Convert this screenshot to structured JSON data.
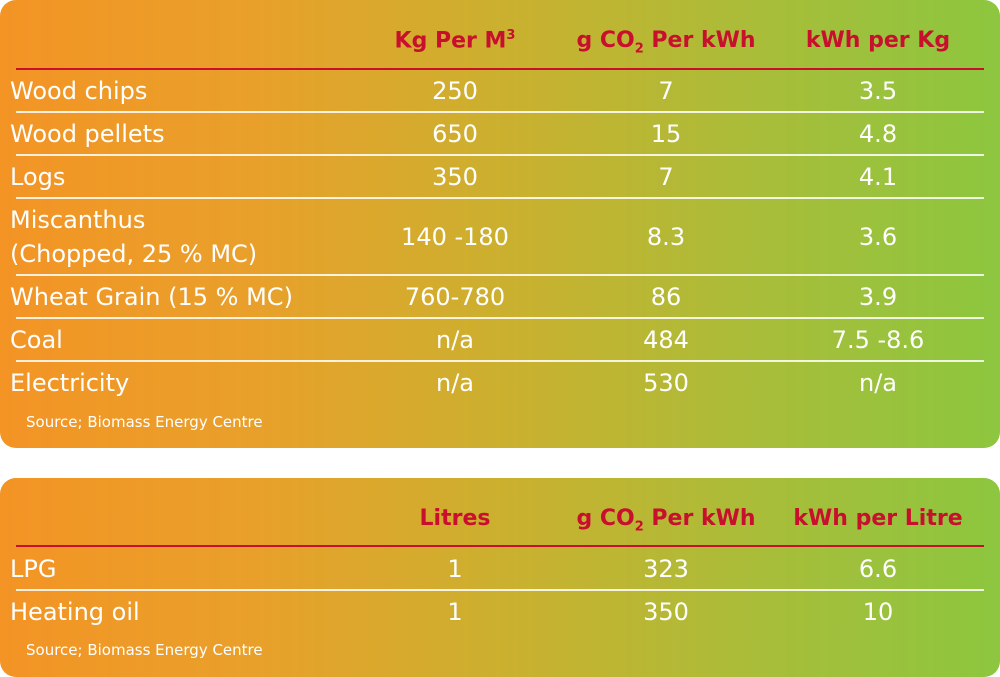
{
  "table1": {
    "headers": {
      "col1_base": "Kg Per M",
      "col1_sup": "3",
      "col2_pre": "g CO",
      "col2_sub": "2",
      "col2_post": " Per kWh",
      "col3": "kWh per Kg"
    },
    "rows": [
      {
        "label": "Wood chips",
        "c1": "250",
        "c2": "7",
        "c3": "3.5"
      },
      {
        "label": "Wood pellets",
        "c1": "650",
        "c2": "15",
        "c3": "4.8"
      },
      {
        "label": "Logs",
        "c1": "350",
        "c2": "7",
        "c3": "4.1"
      },
      {
        "label": "Miscanthus",
        "label2": "(Chopped, 25 %  MC)",
        "c1": "140 -180",
        "c2": "8.3",
        "c3": "3.6"
      },
      {
        "label": "Wheat Grain (15 %  MC)",
        "c1": "760-780",
        "c2": "86",
        "c3": "3.9"
      },
      {
        "label": "Coal",
        "c1": "n/a",
        "c2": "484",
        "c3": "7.5 -8.6"
      },
      {
        "label": "Electricity",
        "c1": "n/a",
        "c2": "530",
        "c3": "n/a"
      }
    ],
    "source": "Source; Biomass Energy Centre"
  },
  "table2": {
    "headers": {
      "col1": "Litres",
      "col2_pre": "g CO",
      "col2_sub": "2",
      "col2_post": " Per kWh",
      "col3": "kWh per Litre"
    },
    "rows": [
      {
        "label": "LPG",
        "c1": "1",
        "c2": "323",
        "c3": "6.6"
      },
      {
        "label": "Heating oil",
        "c1": "1",
        "c2": "350",
        "c3": "10"
      }
    ],
    "source": "Source; Biomass Energy Centre"
  }
}
